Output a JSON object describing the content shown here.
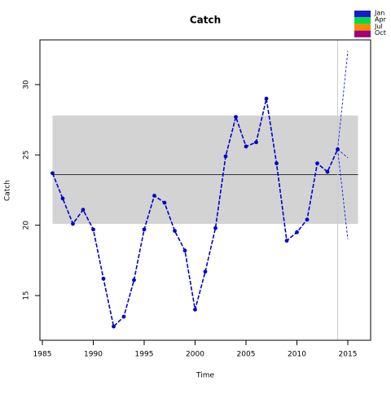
{
  "chart_data": {
    "type": "line",
    "title": "Catch",
    "x_label": "Time",
    "y_label": "Catch",
    "x": [
      1986,
      1987,
      1988,
      1989,
      1990,
      1991,
      1992,
      1993,
      1994,
      1995,
      1996,
      1997,
      1998,
      1999,
      2000,
      2001,
      2002,
      2003,
      2004,
      2005,
      2006,
      2007,
      2008,
      2009,
      2010,
      2011,
      2012,
      2013,
      2014
    ],
    "series": [
      {
        "color": "#0000cc",
        "values": [
          23.7,
          21.9,
          20.1,
          21.1,
          19.7,
          16.2,
          12.8,
          13.5,
          16.1,
          19.7,
          22.1,
          21.6,
          19.6,
          18.2,
          14.0,
          16.7,
          19.8,
          24.9,
          27.7,
          25.6,
          25.9,
          29.0,
          24.4,
          18.9,
          19.5,
          20.4,
          24.4,
          23.8,
          25.4
        ]
      }
    ],
    "band": {
      "x": [
        1986,
        2016
      ],
      "lower": 20.1,
      "upper": 27.8,
      "color": "#d3d3d3"
    },
    "mean": 23.6,
    "vline": 2014,
    "forecast": {
      "x": [
        2014,
        2015
      ],
      "upper": [
        25.4,
        32.4
      ],
      "mid": [
        25.4,
        24.8
      ],
      "lower": [
        25.4,
        19.0
      ],
      "color": "#0000ff"
    },
    "legend": [
      {
        "label": "Jan",
        "color": "#1a1acc"
      },
      {
        "label": "Apr",
        "color": "#00dd44"
      },
      {
        "label": "Jul",
        "color": "#ff8800"
      },
      {
        "label": "Oct",
        "color": "#a0007a"
      }
    ],
    "xlim": [
      1984.76,
      2017.24
    ],
    "ylim": [
      11.82,
      33.18
    ],
    "xticks": [
      1985,
      1990,
      1995,
      2000,
      2005,
      2010,
      2015
    ],
    "yticks": [
      15,
      20,
      25,
      30
    ]
  }
}
